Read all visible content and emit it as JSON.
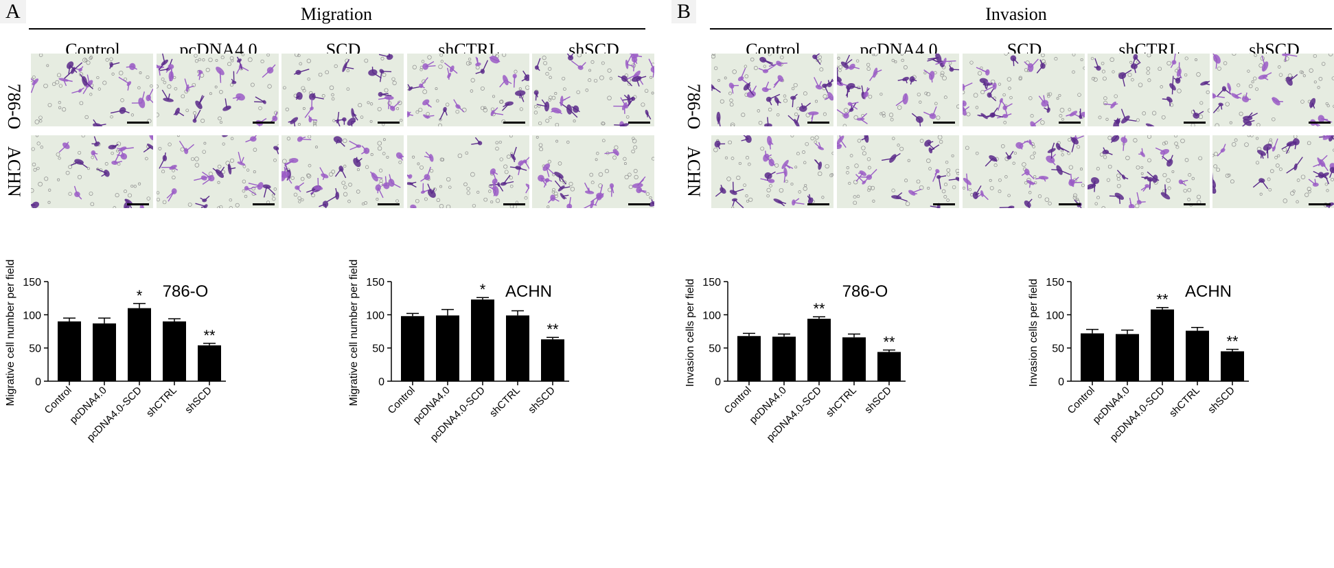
{
  "panels": [
    {
      "letter": "A",
      "title": "Migration",
      "columns": [
        "Control",
        "pcDNA4.0",
        "SCD",
        "shCTRL",
        "shSCD"
      ],
      "rows": [
        "786-O",
        "ACHN"
      ]
    },
    {
      "letter": "B",
      "title": "Invasion",
      "columns": [
        "Control",
        "pcDNA4.0",
        "SCD",
        "shCTRL",
        "shSCD"
      ],
      "rows": [
        "786-O",
        "ACHN"
      ]
    }
  ],
  "colors": {
    "stain": "#5a2a8a",
    "stain_light": "#9a5cc6",
    "background_cells": "#e6ece1",
    "bar": "#000000"
  },
  "chart_data": [
    {
      "type": "bar",
      "title": "786-O",
      "ylabel": "Migrative cell number per field",
      "categories": [
        "Control",
        "pcDNA4.0",
        "pcDNA4.0-SCD",
        "shCTRL",
        "shSCD"
      ],
      "values": [
        90,
        87,
        110,
        90,
        54
      ],
      "errors": [
        5,
        8,
        7,
        4,
        3
      ],
      "significance": [
        "",
        "",
        "*",
        "",
        "**"
      ],
      "ylim": [
        0,
        150
      ],
      "yticks": [
        0,
        50,
        100,
        150
      ]
    },
    {
      "type": "bar",
      "title": "ACHN",
      "ylabel": "Migrative cell number per field",
      "categories": [
        "Control",
        "pcDNA4.0",
        "pcDNA4.0-SCD",
        "shCTRL",
        "shSCD"
      ],
      "values": [
        98,
        99,
        123,
        99,
        63
      ],
      "errors": [
        4,
        9,
        3,
        7,
        3
      ],
      "significance": [
        "",
        "",
        "*",
        "",
        "**"
      ],
      "ylim": [
        0,
        150
      ],
      "yticks": [
        0,
        50,
        100,
        150
      ]
    },
    {
      "type": "bar",
      "title": "786-O",
      "ylabel": "Invasion cells per field",
      "categories": [
        "Control",
        "pcDNA4.0",
        "pcDNA4.0-SCD",
        "shCTRL",
        "shSCD"
      ],
      "values": [
        68,
        67,
        94,
        66,
        44
      ],
      "errors": [
        4,
        4,
        3,
        5,
        3
      ],
      "significance": [
        "",
        "",
        "**",
        "",
        "**"
      ],
      "ylim": [
        0,
        150
      ],
      "yticks": [
        0,
        50,
        100,
        150
      ]
    },
    {
      "type": "bar",
      "title": "ACHN",
      "ylabel": "Invasion cells per field",
      "categories": [
        "Control",
        "pcDNA4.0",
        "pcDNA4.0-SCD",
        "shCTRL",
        "shSCD"
      ],
      "values": [
        72,
        71,
        108,
        76,
        45
      ],
      "errors": [
        6,
        6,
        3,
        5,
        3
      ],
      "significance": [
        "",
        "",
        "**",
        "",
        "**"
      ],
      "ylim": [
        0,
        150
      ],
      "yticks": [
        0,
        50,
        100,
        150
      ]
    }
  ]
}
